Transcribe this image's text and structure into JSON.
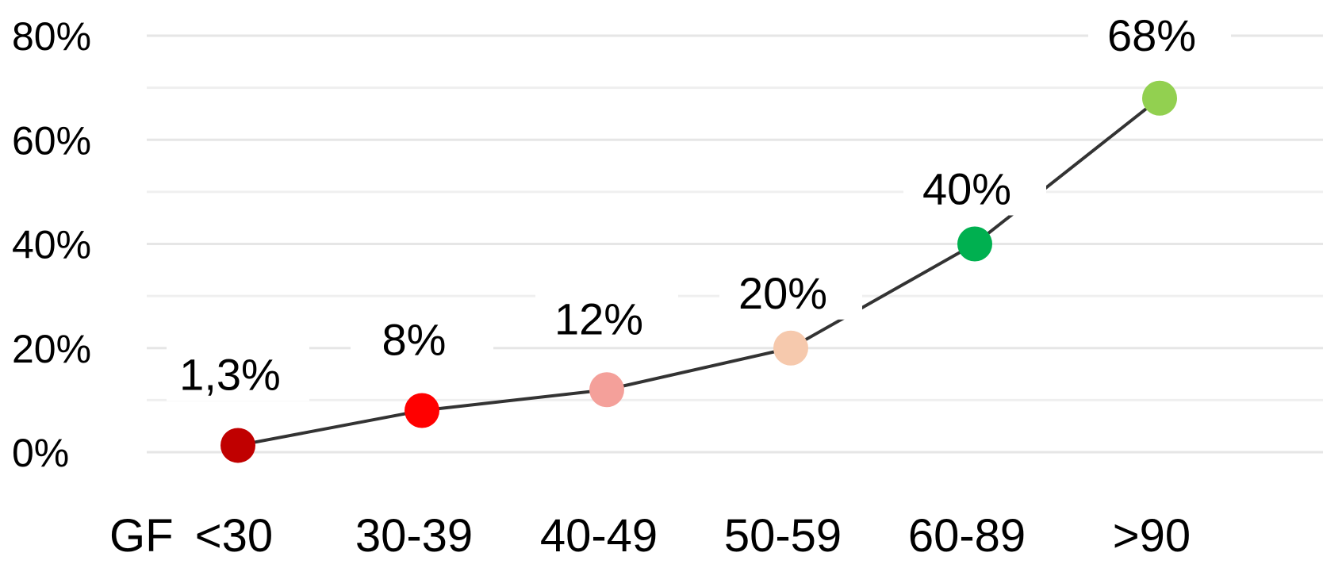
{
  "chart_data": {
    "type": "line",
    "categories": [
      "<30",
      "30-39",
      "40-49",
      "50-59",
      "60-89",
      ">90"
    ],
    "x_prefix": "GF",
    "values": [
      1.3,
      8,
      12,
      20,
      40,
      68
    ],
    "data_labels": [
      "1,3%",
      "8%",
      "12%",
      "20%",
      "40%",
      "68%"
    ],
    "point_colors": [
      "#c00000",
      "#ff0000",
      "#f4a09a",
      "#f6c9ad",
      "#00b050",
      "#92d050"
    ],
    "line_color": "#333333",
    "ylim": [
      0,
      80
    ],
    "yticks": [
      0,
      20,
      40,
      60,
      80
    ],
    "ytick_labels": [
      "0%",
      "20%",
      "40%",
      "60%",
      "80%"
    ],
    "title": "",
    "xlabel": "",
    "ylabel": "",
    "grid": true,
    "legend": "none"
  }
}
